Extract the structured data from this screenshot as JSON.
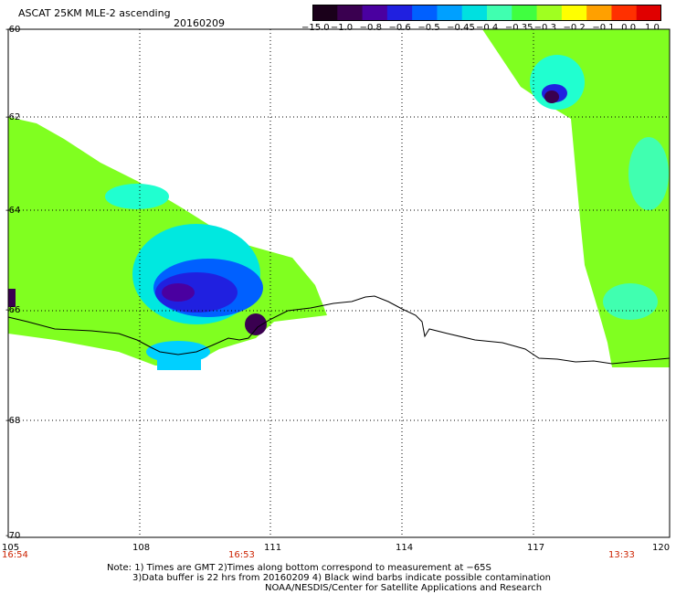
{
  "header": {
    "title": "ASCAT 25KM MLE-2 ascending",
    "date": "20160209"
  },
  "colorbar": {
    "ticks": [
      "−15.0",
      "−1.0",
      "−0.8",
      "−0.6",
      "−0.5",
      "−0.45",
      "−0.4",
      "−0.35",
      "−0.3",
      "−0.2",
      "−0.1",
      "0.0",
      "1.0"
    ],
    "colors": [
      "#1a001a",
      "#3a0050",
      "#4a00a0",
      "#2020e0",
      "#0060ff",
      "#00a0ff",
      "#00e0e0",
      "#40ffb0",
      "#40ff40",
      "#a0ff20",
      "#ffff00",
      "#ffa000",
      "#ff3000",
      "#e00000"
    ]
  },
  "axes": {
    "lat_ticks": [
      "-60",
      "-62",
      "-64",
      "-66",
      "-68",
      "-70"
    ],
    "lon_ticks": [
      "105",
      "108",
      "111",
      "114",
      "117",
      "120"
    ]
  },
  "times": {
    "left": "16:54",
    "middle": "16:53",
    "right": "13:33"
  },
  "notes": {
    "line1": "Note: 1) Times are GMT 2)Times along bottom correspond to measurement at −65S",
    "line2": "3)Data buffer is 22 hrs from 20160209 4) Black wind barbs indicate possible contamination",
    "line3": "NOAA/NESDIS/Center for Satellite Applications and Research"
  }
}
